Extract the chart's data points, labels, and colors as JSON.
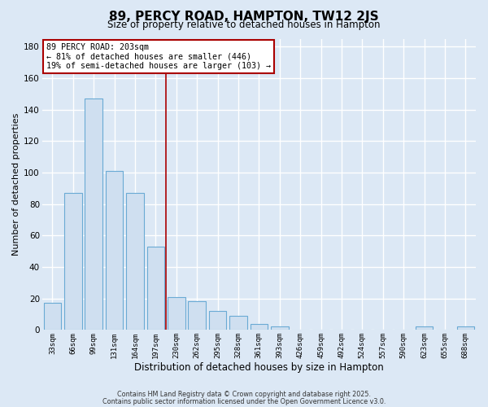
{
  "title": "89, PERCY ROAD, HAMPTON, TW12 2JS",
  "subtitle": "Size of property relative to detached houses in Hampton",
  "xlabel": "Distribution of detached houses by size in Hampton",
  "ylabel": "Number of detached properties",
  "bar_labels": [
    "33sqm",
    "66sqm",
    "99sqm",
    "131sqm",
    "164sqm",
    "197sqm",
    "230sqm",
    "262sqm",
    "295sqm",
    "328sqm",
    "361sqm",
    "393sqm",
    "426sqm",
    "459sqm",
    "492sqm",
    "524sqm",
    "557sqm",
    "590sqm",
    "623sqm",
    "655sqm",
    "688sqm"
  ],
  "bar_values": [
    17,
    87,
    147,
    101,
    87,
    53,
    21,
    18,
    12,
    9,
    4,
    2,
    0,
    0,
    0,
    0,
    0,
    0,
    2,
    0,
    2
  ],
  "bar_color": "#cfdff0",
  "bar_edge_color": "#6aaad4",
  "ylim": [
    0,
    185
  ],
  "yticks": [
    0,
    20,
    40,
    60,
    80,
    100,
    120,
    140,
    160,
    180
  ],
  "vline_x": 5.5,
  "vline_color": "#aa0000",
  "annotation_title": "89 PERCY ROAD: 203sqm",
  "annotation_line1": "← 81% of detached houses are smaller (446)",
  "annotation_line2": "19% of semi-detached houses are larger (103) →",
  "annotation_box_color": "#ffffff",
  "annotation_box_edge": "#aa0000",
  "footer1": "Contains HM Land Registry data © Crown copyright and database right 2025.",
  "footer2": "Contains public sector information licensed under the Open Government Licence v3.0.",
  "bg_color": "#dce8f5",
  "grid_color": "#ffffff",
  "title_fontsize": 11,
  "subtitle_fontsize": 8.5,
  "xlabel_fontsize": 8.5,
  "ylabel_fontsize": 8
}
